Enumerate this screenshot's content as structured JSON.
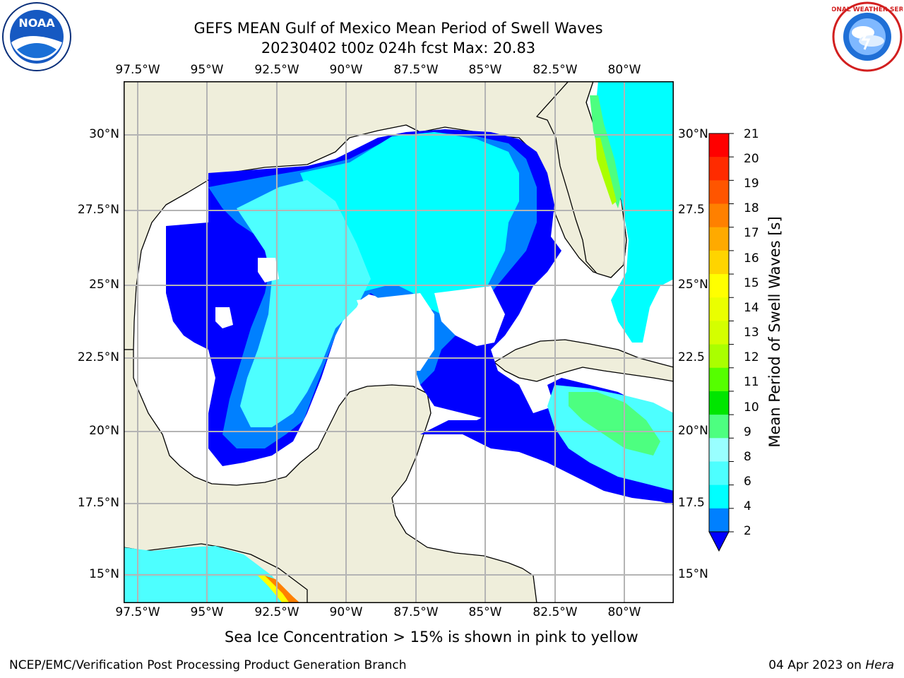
{
  "header": {
    "title_line1": "GEFS MEAN Gulf of Mexico Mean Period of Swell Waves",
    "title_line2": "20230402 t00z 024h fcst   Max: 20.83"
  },
  "logos": {
    "left": "noara-logo",
    "right": "nws-logo",
    "left_text": "NOAA",
    "right_text": "NATIONAL WEATHER SERVICE"
  },
  "axes": {
    "lon_labels": [
      "97.5°W",
      "95°W",
      "92.5°W",
      "90°W",
      "87.5°W",
      "85°W",
      "82.5°W",
      "80°W"
    ],
    "lat_labels_left": [
      "30°N",
      "27.5°N",
      "25°N",
      "22.5°N",
      "20°N",
      "17.5°N",
      "15°N"
    ],
    "lat_labels_right": [
      "30°N",
      "27.5",
      "25°N",
      "22.5",
      "20°N",
      "17.5",
      "15°N"
    ]
  },
  "colorbar": {
    "label": "Mean Period of Swell Waves [s]",
    "ticks": [
      "21",
      "20",
      "19",
      "18",
      "17",
      "16",
      "15",
      "14",
      "13",
      "12",
      "11",
      "10",
      "9",
      "8",
      "6",
      "4",
      "2"
    ],
    "colors": [
      "#ff0000",
      "#ff2b00",
      "#ff5500",
      "#ff8000",
      "#ffaa00",
      "#ffd400",
      "#ffff00",
      "#eaff00",
      "#d4ff00",
      "#aaff00",
      "#55ff00",
      "#00e600",
      "#4dff80",
      "#99ffff",
      "#4dffff",
      "#00ffff",
      "#0080ff"
    ],
    "under_color": "#0000ff"
  },
  "colors": {
    "land": "#efeedb",
    "water": "#ffffff",
    "grid": "#b4b4b4",
    "blue_dark": "#0000ff",
    "blue_mid": "#0080ff",
    "cyan": "#00ffff",
    "cyan_light": "#4dffff",
    "cyan_pale": "#99ffff",
    "green": "#4dff80"
  },
  "note": "Sea Ice Concentration > 15% is shown in pink to yellow",
  "footer": {
    "left": "NCEP/EMC/Verification Post Processing Product Generation Branch",
    "right_prefix": "04 Apr 2023 on",
    "right_italic": "Hera"
  }
}
